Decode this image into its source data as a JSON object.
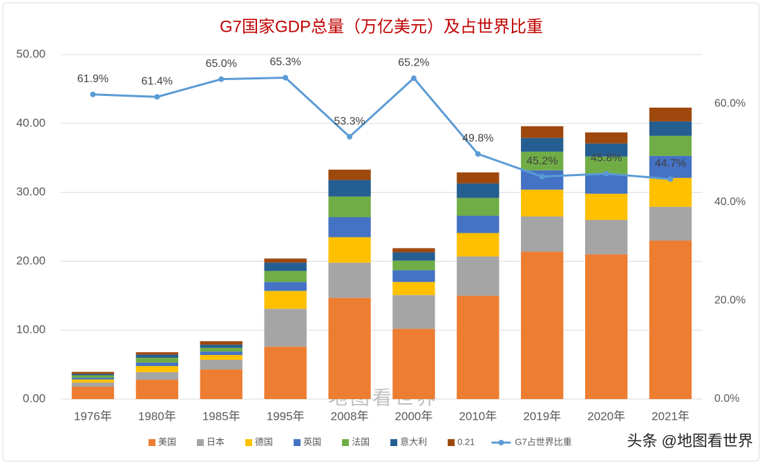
{
  "chart_data": {
    "type": "bar",
    "stacked": true,
    "title": "G7国家GDP总量（万亿美元）及占世界比重",
    "watermark": "地图看世界",
    "source": "头条 @地图看世界",
    "categories": [
      "1976年",
      "1980年",
      "1985年",
      "1995年",
      "2008年",
      "2000年",
      "2010年",
      "2019年",
      "2020年",
      "2021年"
    ],
    "series": [
      {
        "name": "美国",
        "color": "#ed7d31",
        "values": [
          1.8,
          2.8,
          4.3,
          7.6,
          14.7,
          10.2,
          15.0,
          21.4,
          21.0,
          23.0
        ]
      },
      {
        "name": "日本",
        "color": "#a5a5a5",
        "values": [
          0.6,
          1.1,
          1.4,
          5.5,
          5.1,
          4.9,
          5.7,
          5.1,
          5.0,
          4.9
        ]
      },
      {
        "name": "德国",
        "color": "#ffc000",
        "values": [
          0.45,
          0.9,
          0.7,
          2.6,
          3.7,
          1.9,
          3.4,
          3.9,
          3.8,
          4.2
        ]
      },
      {
        "name": "英国",
        "color": "#4472c4",
        "values": [
          0.25,
          0.5,
          0.5,
          1.3,
          2.9,
          1.7,
          2.5,
          2.8,
          2.8,
          3.2
        ]
      },
      {
        "name": "法国",
        "color": "#70ad47",
        "values": [
          0.35,
          0.7,
          0.55,
          1.6,
          3.0,
          1.4,
          2.6,
          2.7,
          2.6,
          2.9
        ]
      },
      {
        "name": "意大利",
        "color": "#255e91",
        "values": [
          0.2,
          0.45,
          0.45,
          1.2,
          2.4,
          1.2,
          2.1,
          2.0,
          1.9,
          2.1
        ]
      },
      {
        "name": "0.21",
        "color": "#9e480e",
        "values": [
          0.3,
          0.35,
          0.5,
          0.6,
          1.5,
          0.6,
          1.6,
          1.7,
          1.6,
          2.0
        ]
      },
      {
        "name": "G7占世界比重",
        "type": "line",
        "axis": "y2",
        "color": "#5b9bd5",
        "values": [
          61.9,
          61.4,
          65.0,
          65.3,
          53.3,
          65.2,
          49.8,
          45.2,
          45.8,
          44.7
        ],
        "value_labels": [
          "61.9%",
          "61.4%",
          "65.0%",
          "65.3%",
          "53.3%",
          "65.2%",
          "49.8%",
          "45.2%",
          "45.8%",
          "44.7%"
        ]
      }
    ],
    "ylim": [
      0,
      50
    ],
    "yticks": [
      {
        "value": 0,
        "label": "0.00"
      },
      {
        "value": 10,
        "label": "10.00"
      },
      {
        "value": 20,
        "label": "20.00"
      },
      {
        "value": 30,
        "label": "30.00"
      },
      {
        "value": 40,
        "label": "40.00"
      },
      {
        "value": 50,
        "label": "50.00"
      }
    ],
    "y2lim": [
      0,
      70
    ],
    "y2ticks": [
      {
        "value": 0,
        "label": "0.0%"
      },
      {
        "value": 20,
        "label": "20.0%"
      },
      {
        "value": 40,
        "label": "40.0%"
      },
      {
        "value": 60,
        "label": "60.0%"
      }
    ],
    "grid": true,
    "legend": "bottom"
  }
}
